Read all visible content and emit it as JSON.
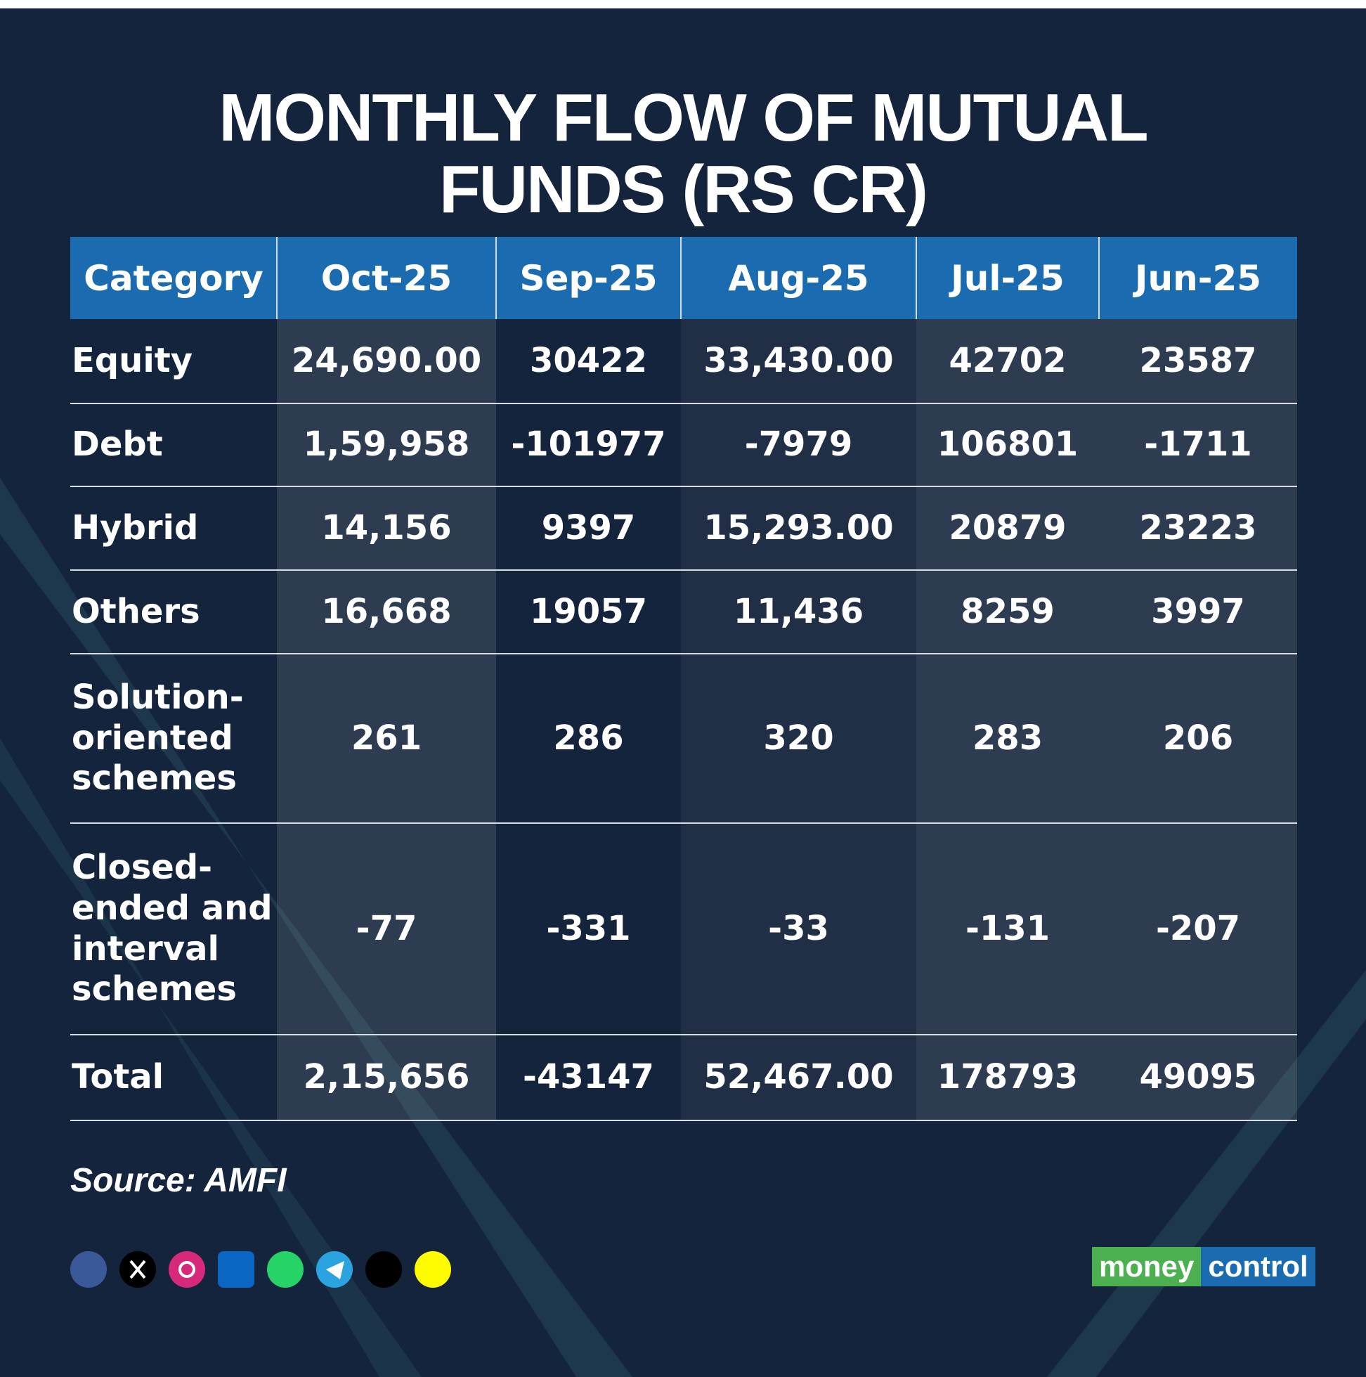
{
  "header": {
    "title_lines": [
      "MONTHLY FLOW OF MUTUAL",
      "FUNDS (RS CR)"
    ]
  },
  "table": {
    "columns": [
      "Category",
      "Oct-25",
      "Sep-25",
      "Aug-25",
      "Jul-25",
      "Jun-25"
    ],
    "rows": [
      [
        "Equity",
        "24,690.00",
        "30422",
        "33,430.00",
        "42702",
        "23587"
      ],
      [
        "Debt",
        "1,59,958",
        "-101977",
        "-7979",
        "106801",
        "-1711"
      ],
      [
        "Hybrid",
        "14,156",
        "9397",
        "15,293.00",
        "20879",
        "23223"
      ],
      [
        "Others",
        "16,668",
        "19057",
        "11,436",
        "8259",
        "3997"
      ],
      [
        "Solution-oriented schemes",
        "261",
        "286",
        "320",
        "283",
        "206"
      ],
      [
        "Closed-ended and interval schemes",
        "-77",
        "-331",
        "-33",
        "-131",
        "-207"
      ],
      [
        "Total",
        "2,15,656",
        "-43147",
        "52,467.00",
        "178793",
        "49095"
      ]
    ]
  },
  "source": "Source: AMFI",
  "logo": {
    "left": "money",
    "right": "control"
  }
}
